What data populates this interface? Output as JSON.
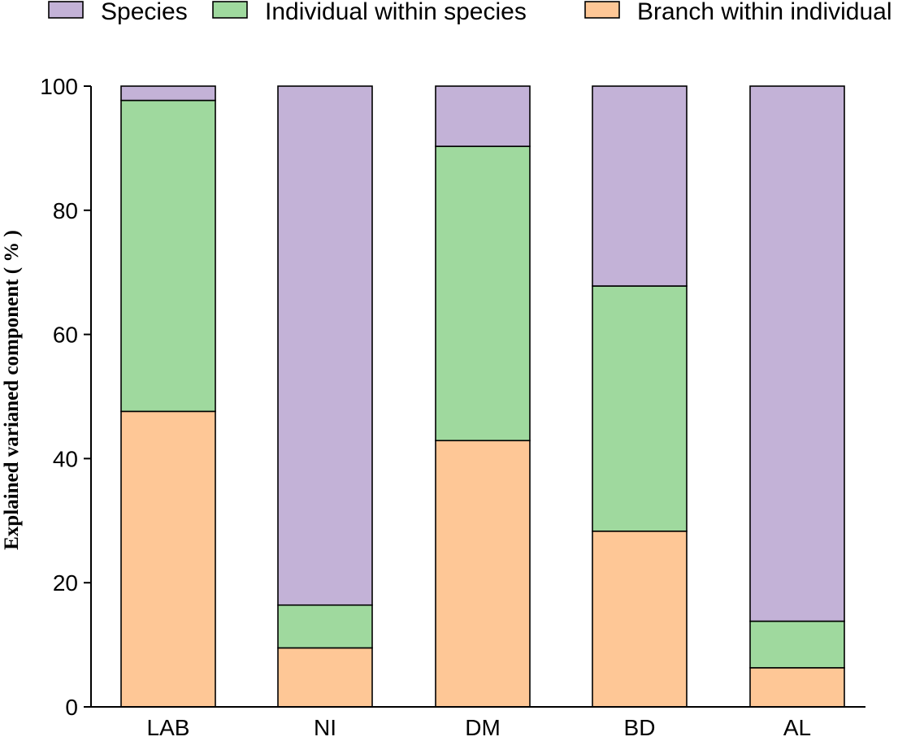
{
  "chart_data": {
    "type": "bar",
    "stacked": true,
    "categories": [
      "LAB",
      "NI",
      "DM",
      "BD",
      "AL"
    ],
    "series": [
      {
        "name": "Branch within individual",
        "color": "#FEC796",
        "values": [
          47.6,
          9.5,
          42.9,
          28.3,
          6.3
        ]
      },
      {
        "name": "Individual within species",
        "color": "#9FD99E",
        "values": [
          50.1,
          6.9,
          47.4,
          39.5,
          7.5
        ]
      },
      {
        "name": "Species",
        "color": "#C3B2D7",
        "values": [
          2.3,
          83.6,
          9.7,
          32.2,
          86.2
        ]
      }
    ],
    "legend_order": [
      "Species",
      "Individual within species",
      "Branch within individual"
    ],
    "legend_position": "top",
    "xlabel": "",
    "ylabel": "Explained varianed component ( % )",
    "ylim": [
      0,
      100
    ],
    "yticks": [
      0,
      20,
      40,
      60,
      80,
      100
    ],
    "grid": false
  }
}
